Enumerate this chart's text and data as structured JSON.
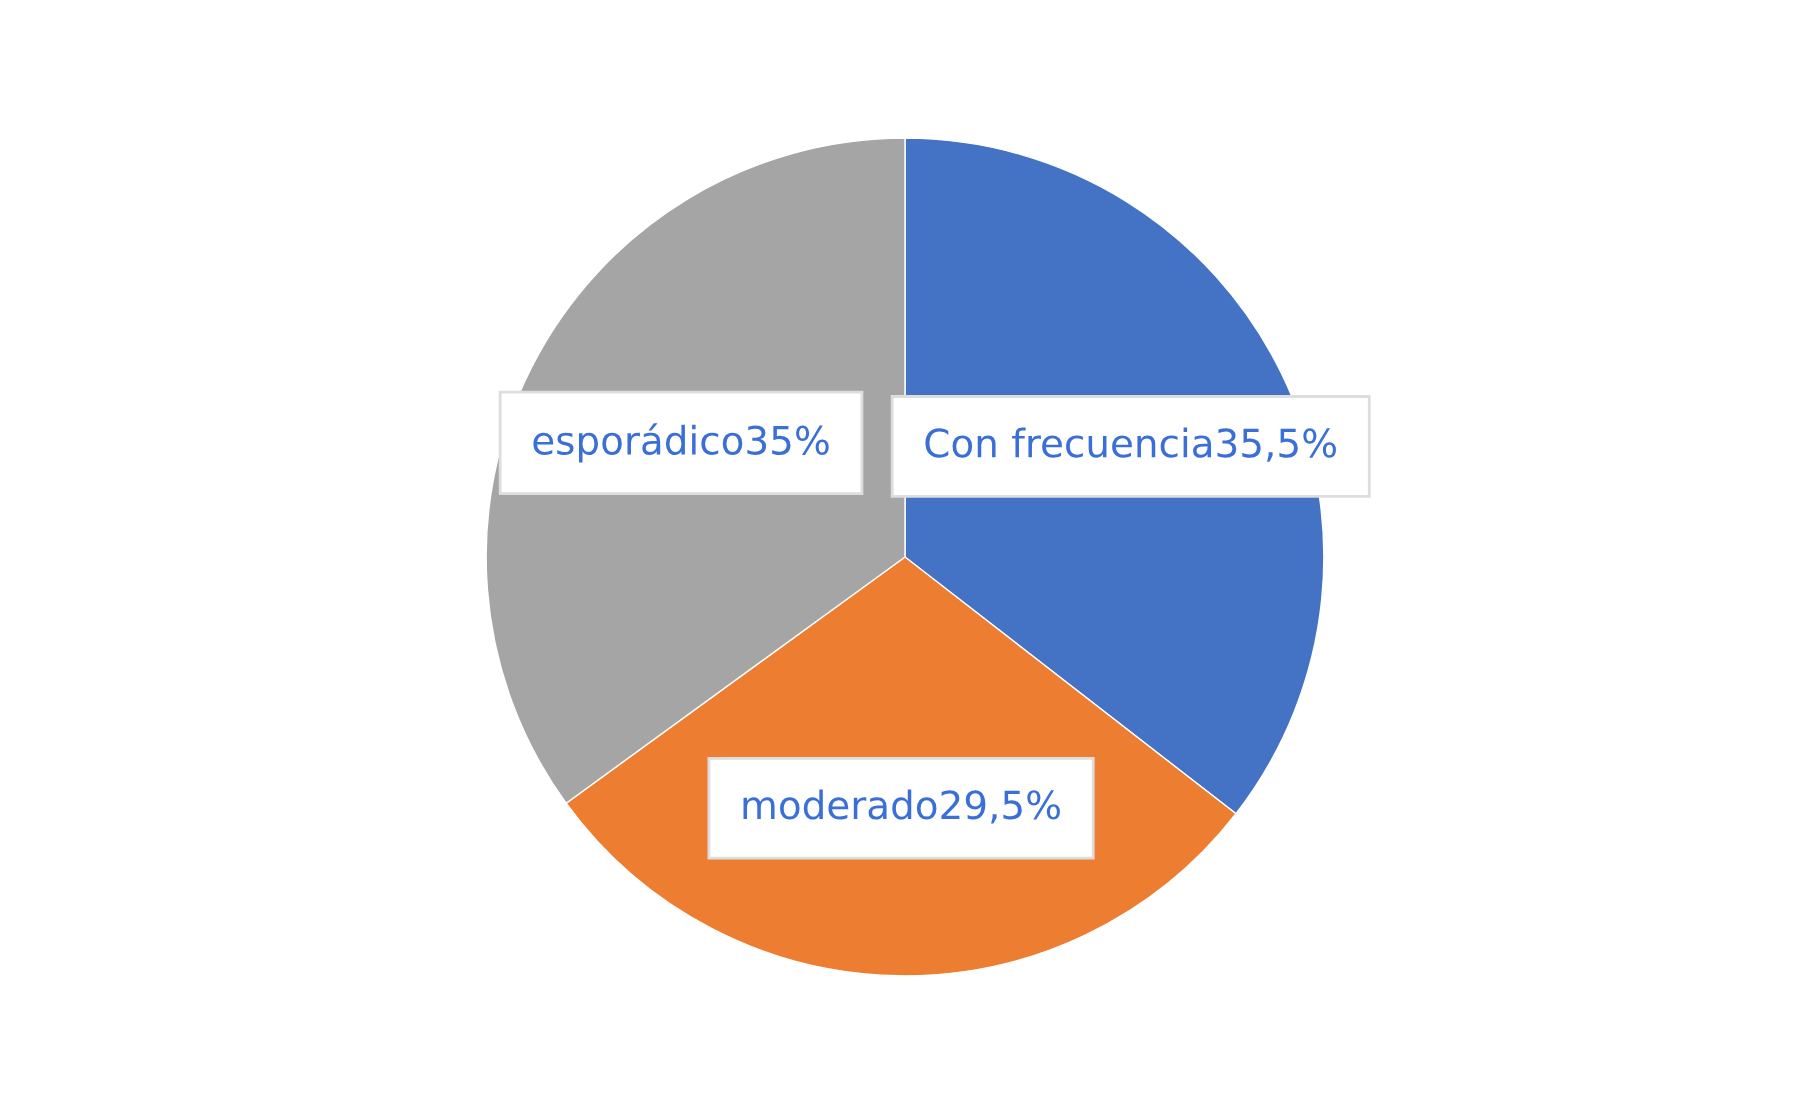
{
  "chart_data": {
    "type": "pie",
    "categories": [
      "Con frecuencia",
      "moderado",
      "esporádico"
    ],
    "values": [
      35.5,
      29.5,
      35
    ],
    "value_labels": [
      "35,5%",
      "29,5%",
      "35%"
    ],
    "colors": [
      "#4472c4",
      "#ed7d31",
      "#a5a5a5"
    ]
  }
}
